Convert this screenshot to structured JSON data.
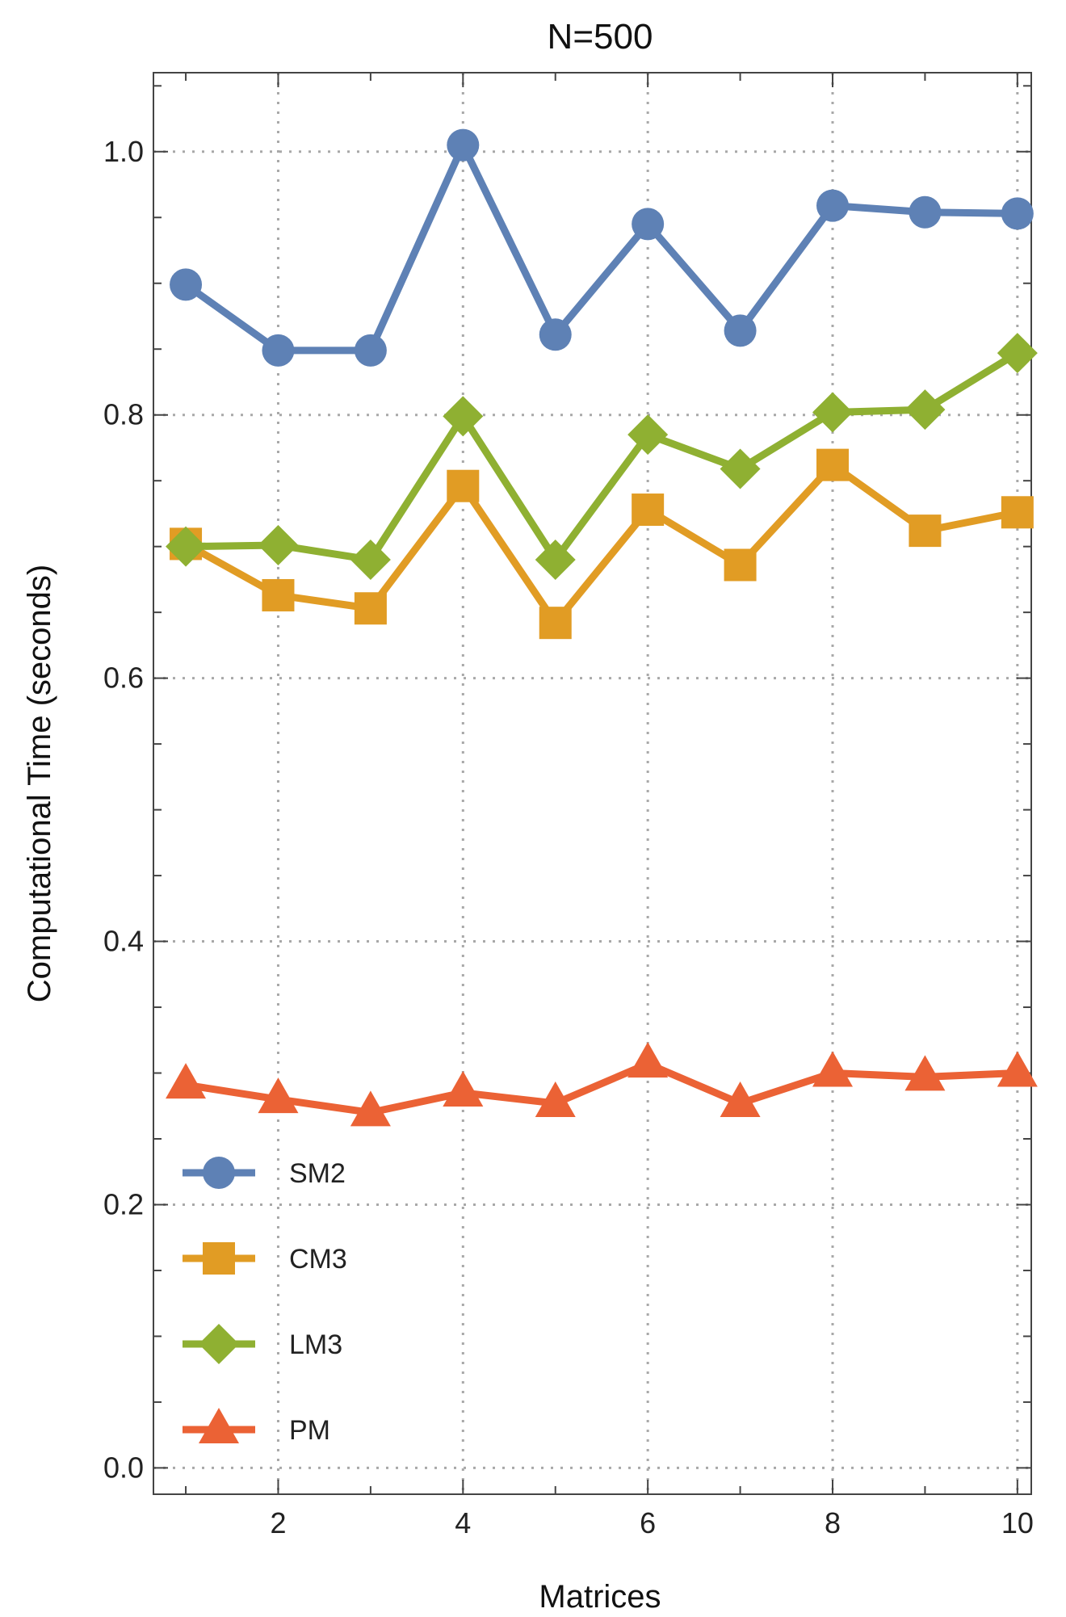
{
  "chart_data": {
    "type": "line",
    "title": "N=500",
    "xlabel": "Matrices",
    "ylabel": "Computational Time (seconds)",
    "x": [
      1,
      2,
      3,
      4,
      5,
      6,
      7,
      8,
      9,
      10
    ],
    "xlim": [
      0.65,
      10.15
    ],
    "ylim": [
      -0.02,
      1.06
    ],
    "xticks": [
      2,
      4,
      6,
      8,
      10
    ],
    "xtick_labels": [
      "2",
      "4",
      "6",
      "8",
      "10"
    ],
    "yticks": [
      0.0,
      0.2,
      0.4,
      0.6,
      0.8,
      1.0
    ],
    "ytick_labels": [
      "0.0",
      "0.2",
      "0.4",
      "0.6",
      "0.8",
      "1.0"
    ],
    "grid": "dotted at major ticks",
    "legend_position": "bottom-left",
    "series": [
      {
        "name": "SM2",
        "color": "#5E81B5",
        "marker": "circle",
        "values": [
          0.899,
          0.849,
          0.849,
          1.005,
          0.861,
          0.945,
          0.864,
          0.959,
          0.954,
          0.953
        ]
      },
      {
        "name": "CM3",
        "color": "#E19C24",
        "marker": "square",
        "values": [
          0.702,
          0.663,
          0.653,
          0.746,
          0.642,
          0.728,
          0.686,
          0.762,
          0.712,
          0.726
        ]
      },
      {
        "name": "LM3",
        "color": "#8FB032",
        "marker": "diamond",
        "values": [
          0.7,
          0.701,
          0.69,
          0.799,
          0.69,
          0.785,
          0.759,
          0.802,
          0.804,
          0.847
        ]
      },
      {
        "name": "PM",
        "color": "#EB6235",
        "marker": "triangle",
        "values": [
          0.291,
          0.28,
          0.27,
          0.285,
          0.277,
          0.307,
          0.277,
          0.3,
          0.297,
          0.3
        ]
      }
    ]
  }
}
